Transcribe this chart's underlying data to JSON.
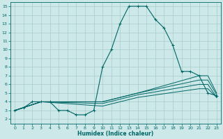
{
  "xlabel": "Humidex (Indice chaleur)",
  "ylabel": "",
  "background_color": "#cce8e8",
  "grid_color": "#aacccc",
  "line_color": "#006666",
  "xlim": [
    -0.5,
    23.5
  ],
  "ylim": [
    1.5,
    15.5
  ],
  "xticks": [
    0,
    1,
    2,
    3,
    4,
    5,
    6,
    7,
    8,
    9,
    10,
    11,
    12,
    13,
    14,
    15,
    16,
    17,
    18,
    19,
    20,
    21,
    22,
    23
  ],
  "yticks": [
    2,
    3,
    4,
    5,
    6,
    7,
    8,
    9,
    10,
    11,
    12,
    13,
    14,
    15
  ],
  "main_line": {
    "x": [
      0,
      1,
      2,
      3,
      4,
      5,
      6,
      7,
      8,
      9,
      10,
      11,
      12,
      13,
      14,
      15,
      16,
      17,
      18,
      19,
      20,
      21,
      22,
      23
    ],
    "y": [
      3,
      3.3,
      4,
      4,
      4,
      3,
      3,
      2.5,
      2.5,
      3,
      8,
      10,
      13,
      15,
      15,
      15,
      13.5,
      12.5,
      10.5,
      7.5,
      7.5,
      7,
      5,
      4.7
    ]
  },
  "fan_lines": [
    {
      "x": [
        0,
        3,
        10,
        14,
        21,
        22,
        23
      ],
      "y": [
        3,
        4,
        4,
        5,
        7,
        7,
        5
      ]
    },
    {
      "x": [
        0,
        3,
        10,
        14,
        21,
        22,
        23
      ],
      "y": [
        3,
        4,
        4,
        5,
        6.5,
        6.5,
        4.8
      ]
    },
    {
      "x": [
        0,
        3,
        10,
        14,
        21,
        22,
        23
      ],
      "y": [
        3,
        4,
        3.8,
        4.8,
        6,
        6,
        4.5
      ]
    },
    {
      "x": [
        0,
        3,
        10,
        14,
        21,
        22,
        23
      ],
      "y": [
        3,
        4,
        3.5,
        4.5,
        5.5,
        5.5,
        4.5
      ]
    }
  ]
}
